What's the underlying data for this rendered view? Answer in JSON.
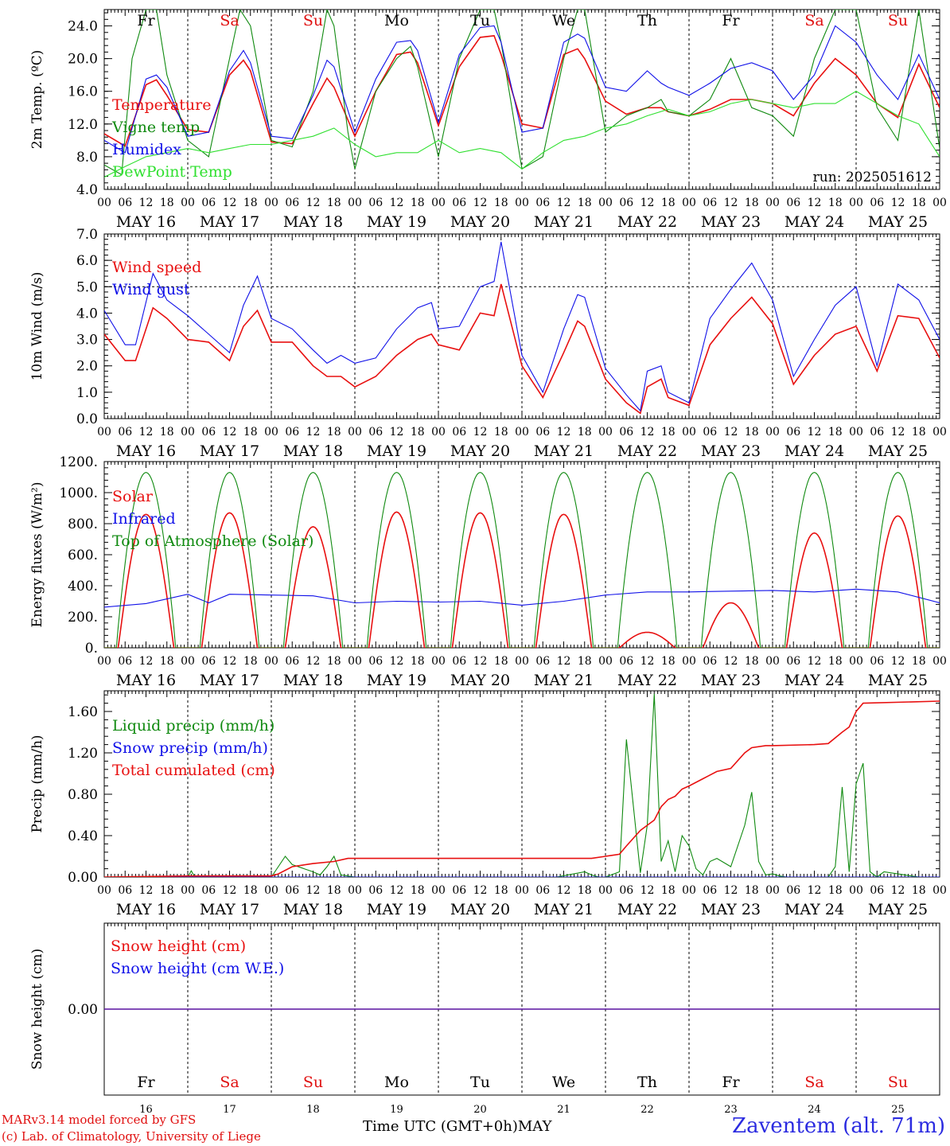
{
  "footer": {
    "model_line": "MARv3.14 model forced by GFS",
    "lab_line": "(c) Lab. of Climatology, University of Liege",
    "x_title": "Time UTC (GMT+0h)",
    "x_month": "MAY",
    "station": "Zaventem (alt. 71m)"
  },
  "time_axis": {
    "hour_labels": [
      "00",
      "06",
      "12",
      "18"
    ],
    "date_labels": [
      "MAY 16",
      "MAY 17",
      "MAY 18",
      "MAY 19",
      "MAY 20",
      "MAY 21",
      "MAY 22",
      "MAY 23",
      "MAY 24",
      "MAY 25"
    ],
    "day_names": [
      "Fr",
      "Sa",
      "Su",
      "Mo",
      "Tu",
      "We",
      "Th",
      "Fr",
      "Sa",
      "Su"
    ],
    "day_numbers": [
      "16",
      "17",
      "18",
      "19",
      "20",
      "21",
      "22",
      "23",
      "24",
      "25"
    ],
    "weekend_color": "#e01010"
  },
  "colors": {
    "red": "#e81010",
    "blue": "#1010e8",
    "green": "#108a10",
    "lightgreen": "#30e030"
  },
  "chart_data": [
    {
      "type": "line",
      "ylabel": "2m Temp. (ºC)",
      "yticks": [
        "4.0",
        "8.0",
        "12.0",
        "16.0",
        "20.0",
        "24.0"
      ],
      "ylim": [
        4,
        26
      ],
      "run_label": "run: 2025051612",
      "series": [
        {
          "name": "Temperature",
          "color": "red",
          "x": [
            0,
            6,
            12,
            15,
            18,
            24,
            30,
            36,
            40,
            42,
            48,
            54,
            60,
            64,
            66,
            72,
            78,
            84,
            88,
            90,
            96,
            102,
            108,
            112,
            114,
            120,
            126,
            132,
            136,
            138,
            144,
            150,
            156,
            160,
            162,
            168,
            174,
            180,
            186,
            192,
            198,
            204,
            210,
            216,
            222,
            228,
            234,
            240
          ],
          "values": [
            10.8,
            9.3,
            16.8,
            17.4,
            15.5,
            11.3,
            11.0,
            18.0,
            19.8,
            18.5,
            9.8,
            9.6,
            14.5,
            17.6,
            16.5,
            10.5,
            16.0,
            20.5,
            20.8,
            19.5,
            11.8,
            19.0,
            22.6,
            22.8,
            20.5,
            12.0,
            11.5,
            20.5,
            21.2,
            20.0,
            14.8,
            13.2,
            14.0,
            14.0,
            13.5,
            13.0,
            13.8,
            15.0,
            15.0,
            14.5,
            13.0,
            17.0,
            20.0,
            18.0,
            14.5,
            12.8,
            19.3,
            14.0
          ]
        },
        {
          "name": "Vigne temp",
          "color": "green",
          "x": [
            0,
            5,
            8,
            12,
            15,
            18,
            24,
            30,
            36,
            39,
            42,
            48,
            54,
            60,
            64,
            66,
            70,
            72,
            78,
            84,
            88,
            90,
            96,
            102,
            108,
            112,
            114,
            120,
            126,
            132,
            136,
            138,
            144,
            150,
            156,
            160,
            162,
            168,
            174,
            180,
            186,
            192,
            198,
            204,
            210,
            216,
            222,
            228,
            234,
            240
          ],
          "values": [
            7.0,
            5.8,
            20.0,
            26.0,
            26.0,
            18.0,
            10.0,
            8.0,
            20.0,
            26.0,
            24.0,
            10.0,
            9.2,
            16.0,
            26.0,
            24.0,
            11.0,
            6.5,
            16.0,
            20.0,
            21.5,
            19.0,
            8.0,
            20.0,
            26.0,
            26.0,
            22.0,
            6.5,
            8.0,
            20.0,
            26.0,
            26.0,
            11.0,
            13.0,
            14.0,
            15.0,
            13.5,
            13.0,
            15.0,
            20.0,
            14.0,
            13.0,
            10.5,
            20.0,
            26.0,
            26.0,
            14.0,
            10.0,
            26.0,
            9.0
          ]
        },
        {
          "name": "Humidex",
          "color": "blue",
          "x": [
            0,
            6,
            12,
            15,
            18,
            24,
            30,
            36,
            40,
            42,
            48,
            54,
            60,
            64,
            66,
            72,
            78,
            84,
            88,
            90,
            96,
            102,
            108,
            112,
            114,
            120,
            126,
            132,
            136,
            138,
            144,
            150,
            156,
            160,
            162,
            168,
            174,
            180,
            186,
            192,
            198,
            204,
            210,
            216,
            222,
            228,
            234,
            240
          ],
          "values": [
            10.0,
            8.5,
            17.5,
            18.0,
            16.5,
            10.5,
            11.0,
            18.5,
            21.0,
            19.5,
            10.5,
            10.2,
            15.5,
            19.8,
            19.0,
            11.0,
            17.5,
            22.0,
            22.2,
            21.0,
            12.2,
            20.5,
            23.8,
            24.0,
            22.0,
            11.0,
            11.5,
            22.0,
            23.0,
            22.5,
            16.5,
            16.0,
            18.5,
            17.0,
            16.5,
            15.5,
            17.0,
            18.8,
            19.5,
            18.5,
            15.0,
            18.0,
            24.0,
            22.0,
            18.0,
            15.0,
            20.5,
            15.0
          ]
        },
        {
          "name": "DewPoint Temp",
          "color": "lightgreen",
          "x": [
            0,
            6,
            12,
            18,
            24,
            30,
            36,
            42,
            48,
            54,
            60,
            66,
            72,
            78,
            84,
            90,
            96,
            102,
            108,
            114,
            120,
            126,
            132,
            138,
            144,
            150,
            156,
            162,
            168,
            174,
            180,
            186,
            192,
            198,
            204,
            210,
            216,
            222,
            228,
            234,
            240
          ],
          "values": [
            5.5,
            6.8,
            8.0,
            8.5,
            9.0,
            8.5,
            9.0,
            9.5,
            9.5,
            10.0,
            10.5,
            11.5,
            9.5,
            8.0,
            8.5,
            8.5,
            10.0,
            8.5,
            9.0,
            8.5,
            6.5,
            8.5,
            10.0,
            10.5,
            11.5,
            12.0,
            13.0,
            13.8,
            13.0,
            13.5,
            14.5,
            15.0,
            14.5,
            14.0,
            14.5,
            14.5,
            16.0,
            14.5,
            13.0,
            12.0,
            8.0
          ]
        }
      ]
    },
    {
      "type": "line",
      "ylabel": "10m Wind (m/s)",
      "yticks": [
        "0.0",
        "1.0",
        "2.0",
        "3.0",
        "4.0",
        "5.0",
        "6.0",
        "7.0"
      ],
      "ylim": [
        0,
        7
      ],
      "reference_line": 5.0,
      "series": [
        {
          "name": "Wind speed",
          "color": "red",
          "x": [
            0,
            6,
            9,
            14,
            18,
            24,
            30,
            36,
            40,
            44,
            48,
            54,
            60,
            64,
            68,
            72,
            78,
            84,
            90,
            94,
            96,
            102,
            108,
            112,
            114,
            120,
            126,
            132,
            136,
            138,
            144,
            150,
            154,
            156,
            160,
            162,
            168,
            174,
            180,
            186,
            192,
            198,
            204,
            210,
            216,
            222,
            228,
            234,
            240
          ],
          "values": [
            3.2,
            2.2,
            2.2,
            4.2,
            3.8,
            3.0,
            2.9,
            2.2,
            3.5,
            4.1,
            2.9,
            2.9,
            2.0,
            1.6,
            1.6,
            1.2,
            1.6,
            2.4,
            3.0,
            3.2,
            2.8,
            2.6,
            4.0,
            3.9,
            5.1,
            2.0,
            0.8,
            2.5,
            3.7,
            3.5,
            1.5,
            0.6,
            0.2,
            1.2,
            1.5,
            0.8,
            0.5,
            2.8,
            3.8,
            4.6,
            3.6,
            1.3,
            2.4,
            3.2,
            3.5,
            1.8,
            3.9,
            3.8,
            2.3
          ]
        },
        {
          "name": "Wind gust",
          "color": "blue",
          "x": [
            0,
            6,
            9,
            14,
            18,
            24,
            30,
            36,
            40,
            44,
            48,
            54,
            60,
            64,
            68,
            72,
            78,
            84,
            90,
            94,
            96,
            102,
            108,
            112,
            114,
            120,
            126,
            132,
            136,
            138,
            144,
            150,
            154,
            156,
            160,
            162,
            168,
            174,
            180,
            186,
            192,
            198,
            204,
            210,
            216,
            222,
            228,
            234,
            240
          ],
          "values": [
            4.1,
            2.8,
            2.8,
            5.5,
            4.5,
            3.9,
            3.2,
            2.5,
            4.3,
            5.4,
            3.8,
            3.4,
            2.6,
            2.1,
            2.4,
            2.1,
            2.3,
            3.4,
            4.2,
            4.4,
            3.4,
            3.5,
            5.0,
            5.2,
            6.7,
            2.4,
            1.0,
            3.4,
            4.7,
            4.6,
            1.9,
            0.9,
            0.3,
            1.8,
            2.0,
            1.0,
            0.6,
            3.8,
            4.9,
            5.9,
            4.5,
            1.6,
            3.0,
            4.3,
            5.0,
            2.0,
            5.1,
            4.5,
            3.0
          ]
        }
      ]
    },
    {
      "type": "line",
      "ylabel": "Energy fluxes (W/m²)",
      "yticks": [
        "0.",
        "200.",
        "400.",
        "600.",
        "800.",
        "1000.",
        "1200."
      ],
      "ylim": [
        0,
        1200
      ],
      "series": [
        {
          "name": "Solar",
          "color": "red",
          "peaks": [
            860,
            870,
            780,
            875,
            870,
            860,
            100,
            290,
            740,
            850
          ]
        },
        {
          "name": "Infrared",
          "color": "blue",
          "x": [
            0,
            12,
            24,
            30,
            36,
            48,
            60,
            72,
            84,
            96,
            108,
            120,
            132,
            144,
            156,
            168,
            180,
            192,
            204,
            216,
            228,
            240
          ],
          "values": [
            262,
            285,
            345,
            290,
            345,
            340,
            335,
            290,
            300,
            295,
            300,
            275,
            300,
            340,
            360,
            360,
            365,
            370,
            360,
            378,
            360,
            290
          ]
        },
        {
          "name": "Top of Atmosphere (Solar)",
          "color": "green",
          "peak": 1130
        }
      ]
    },
    {
      "type": "line",
      "ylabel": "Precip (mm/h)",
      "yticks": [
        "0.00",
        "0.40",
        "0.80",
        "1.20",
        "1.60"
      ],
      "ylim": [
        0,
        1.8
      ],
      "series": [
        {
          "name": "Liquid precip (mm/h)",
          "color": "green",
          "x": [
            0,
            24,
            25,
            26,
            48,
            50,
            52,
            54,
            60,
            62,
            64,
            66,
            68,
            72,
            130,
            138,
            140,
            142,
            144,
            148,
            150,
            154,
            156,
            158,
            160,
            162,
            164,
            166,
            168,
            170,
            172,
            174,
            176,
            180,
            184,
            186,
            188,
            190,
            192,
            194,
            196,
            200,
            208,
            210,
            212,
            214,
            216,
            218,
            220,
            222,
            224,
            228,
            234,
            240
          ],
          "values": [
            0,
            0,
            0.06,
            0,
            0,
            0.1,
            0.2,
            0.12,
            0.05,
            0.02,
            0.1,
            0.2,
            0.02,
            0,
            0,
            0.05,
            0.02,
            0,
            0,
            0.05,
            1.33,
            0.04,
            0.5,
            1.77,
            0.15,
            0.35,
            0.05,
            0.4,
            0.3,
            0.08,
            0.02,
            0.15,
            0.18,
            0.1,
            0.5,
            0.82,
            0.15,
            0.02,
            0.03,
            0.01,
            0,
            0,
            0,
            0.1,
            0.87,
            0.05,
            0.9,
            1.1,
            0.05,
            0,
            0.05,
            0.03,
            0,
            0
          ]
        },
        {
          "name": "Snow precip (mm/h)",
          "color": "blue",
          "x": [
            0,
            240
          ],
          "values": [
            0,
            0
          ]
        },
        {
          "name": "Total cumulated (cm)",
          "color": "red",
          "x": [
            0,
            24,
            48,
            50,
            54,
            60,
            66,
            70,
            72,
            96,
            120,
            140,
            144,
            146,
            148,
            150,
            154,
            156,
            158,
            160,
            162,
            164,
            166,
            168,
            172,
            176,
            180,
            184,
            186,
            190,
            192,
            204,
            208,
            212,
            214,
            216,
            218,
            240
          ],
          "values": [
            0,
            0.01,
            0.01,
            0.03,
            0.1,
            0.13,
            0.15,
            0.18,
            0.18,
            0.18,
            0.18,
            0.18,
            0.2,
            0.21,
            0.22,
            0.3,
            0.45,
            0.5,
            0.55,
            0.68,
            0.75,
            0.78,
            0.85,
            0.88,
            0.95,
            1.02,
            1.05,
            1.2,
            1.25,
            1.27,
            1.27,
            1.28,
            1.29,
            1.4,
            1.45,
            1.6,
            1.68,
            1.7
          ]
        }
      ]
    },
    {
      "type": "line",
      "ylabel": "Snow height (cm)",
      "yticks": [
        "0.00"
      ],
      "ylim": [
        -1,
        1
      ],
      "series": [
        {
          "name": "Snow height (cm)",
          "color": "red",
          "x": [
            0,
            240
          ],
          "values": [
            0,
            0
          ]
        },
        {
          "name": "Snow height (cm W.E.)",
          "color": "blue",
          "x": [
            0,
            240
          ],
          "values": [
            0,
            0
          ]
        }
      ]
    }
  ]
}
